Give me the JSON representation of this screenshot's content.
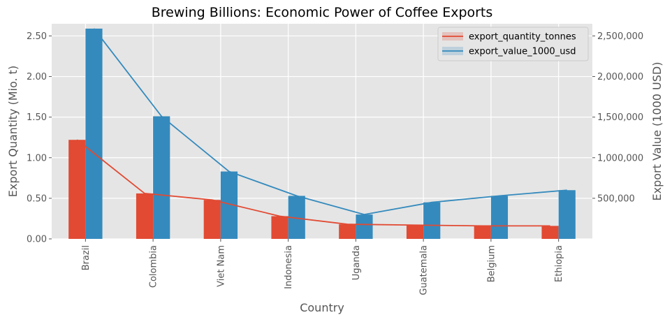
{
  "chart_data": {
    "type": "bar",
    "title": "Brewing Billions: Economic Power of Coffee Exports",
    "xlabel": "Country",
    "ylabel_left": "Export Quantity (Mio. t)",
    "ylabel_right": "Export Value (1000 USD)",
    "categories": [
      "Brazil",
      "Colombia",
      "Viet Nam",
      "Indonesia",
      "Uganda",
      "Guatemala",
      "Belgium",
      "Ethiopia"
    ],
    "left_axis": {
      "ylim": [
        0,
        2.65
      ],
      "ticks": [
        0,
        0.5,
        1.0,
        1.5,
        2.0,
        2.5
      ],
      "tick_labels": [
        "0.00",
        "0.50",
        "1.00",
        "1.50",
        "2.00",
        "2.50"
      ]
    },
    "right_axis": {
      "ylim": [
        0,
        2650000
      ],
      "ticks": [
        500000,
        1000000,
        1500000,
        2000000,
        2500000
      ],
      "tick_labels": [
        "500,000",
        "1,000,000",
        "1,500,000",
        "2,000,000",
        "2,500,000"
      ]
    },
    "series": [
      {
        "name": "export_quantity_tonnes",
        "axis": "left",
        "color": "#E24A33",
        "values": [
          1.22,
          0.56,
          0.48,
          0.28,
          0.18,
          0.17,
          0.16,
          0.16
        ]
      },
      {
        "name": "export_value_1000_usd",
        "axis": "right",
        "color": "#348ABD",
        "values": [
          2590000,
          1510000,
          830000,
          530000,
          300000,
          450000,
          530000,
          600000
        ]
      }
    ],
    "grid": true,
    "legend_position": "top-right",
    "background": "#E5E5E5"
  }
}
